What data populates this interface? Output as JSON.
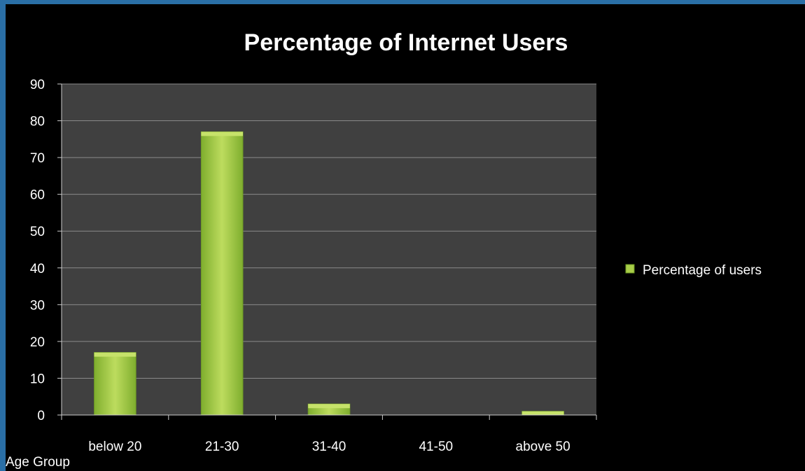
{
  "chart_data": {
    "type": "bar",
    "title": "Percentage of Internet Users",
    "xlabel": "Age Group",
    "ylabel": "",
    "categories": [
      "below 20",
      "21-30",
      "31-40",
      "41-50",
      "above 50"
    ],
    "series": [
      {
        "name": "Percentage of users",
        "values": [
          17,
          77,
          3,
          0,
          1
        ]
      }
    ],
    "ylim": [
      0,
      90
    ],
    "yticks": [
      0,
      10,
      20,
      30,
      40,
      50,
      60,
      70,
      80,
      90
    ],
    "grid": true,
    "legend": "right",
    "colors": {
      "plot_bg": "#404040",
      "bar": "#8fbc3a",
      "bar_light": "#c6e26a",
      "grid": "#8a8a8a",
      "text": "#ffffff",
      "frame": "#2a6fa6"
    }
  }
}
